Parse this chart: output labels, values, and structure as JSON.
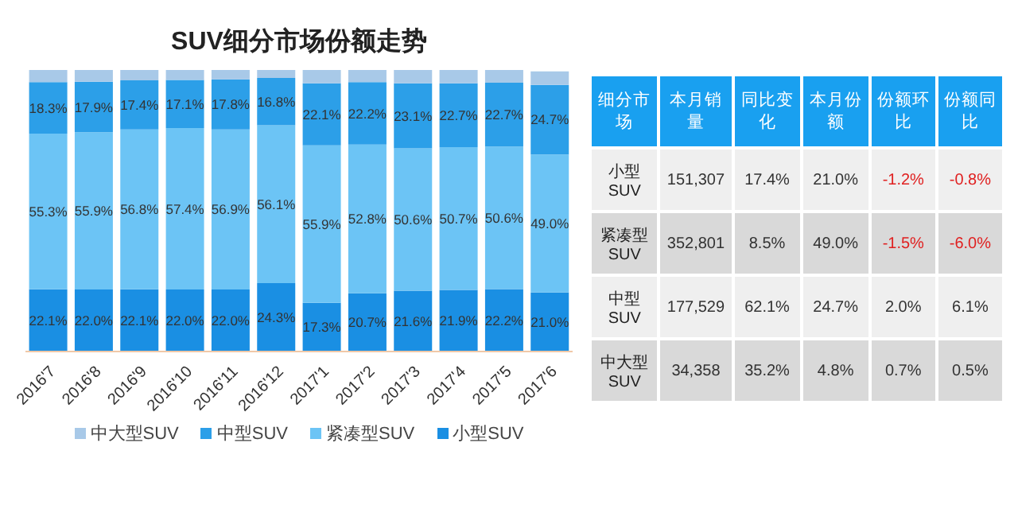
{
  "chart_data": [
    {
      "type": "bar",
      "title": "SUV细分市场份额走势",
      "stacked": true,
      "categories": [
        "2016'7",
        "2016'8",
        "2016'9",
        "2016'10",
        "2016'11",
        "2016'12",
        "2017'1",
        "2017'2",
        "2017'3",
        "2017'4",
        "2017'5",
        "2017'6"
      ],
      "series": [
        {
          "name": "小型SUV",
          "color": "#1a8fe3",
          "values": [
            22.1,
            22.0,
            22.1,
            22.0,
            22.0,
            24.3,
            17.3,
            20.7,
            21.6,
            21.9,
            22.2,
            21.0
          ],
          "value_labels": [
            "22.1%",
            "22.0%",
            "22.1%",
            "22.0%",
            "22.0%",
            "24.3%",
            "17.3%",
            "20.7%",
            "21.6%",
            "21.9%",
            "22.2%",
            "21.0%"
          ]
        },
        {
          "name": "紧凑型SUV",
          "color": "#6cc4f5",
          "values": [
            55.3,
            55.9,
            56.8,
            57.4,
            56.9,
            56.1,
            55.9,
            52.8,
            50.6,
            50.7,
            50.6,
            49.0
          ],
          "value_labels": [
            "55.3%",
            "55.9%",
            "56.8%",
            "57.4%",
            "56.9%",
            "56.1%",
            "55.9%",
            "52.8%",
            "50.6%",
            "50.7%",
            "50.6%",
            "49.0%"
          ]
        },
        {
          "name": "中型SUV",
          "color": "#2c9fe8",
          "values": [
            18.3,
            17.9,
            17.4,
            17.1,
            17.8,
            16.8,
            22.1,
            22.2,
            23.1,
            22.7,
            22.7,
            24.7
          ],
          "value_labels": [
            "18.3%",
            "17.9%",
            "17.4%",
            "17.1%",
            "17.8%",
            "16.8%",
            "22.1%",
            "22.2%",
            "23.1%",
            "22.7%",
            "22.7%",
            "24.7%"
          ]
        },
        {
          "name": "中大型SUV",
          "color": "#a8c9e8",
          "values": [
            4.3,
            4.2,
            3.7,
            3.5,
            3.3,
            2.8,
            4.7,
            4.3,
            4.7,
            4.7,
            4.5,
            4.8
          ]
        }
      ],
      "ylim": [
        0,
        100
      ],
      "tick_labels": "x",
      "legend": "bottom"
    },
    {
      "type": "other",
      "categories": [
        "细分市场",
        "本月销量",
        "同比变化",
        "本月份额",
        "份额环比",
        "份额同比"
      ],
      "y_categories": [
        "小型SUV",
        "紧凑型SUV",
        "中型SUV",
        "中大型SUV"
      ],
      "cell_labels": [
        [
          "151,307",
          "17.4%",
          "21.0%",
          "-1.2%",
          "-0.8%"
        ],
        [
          "352,801",
          "8.5%",
          "49.0%",
          "-1.5%",
          "-6.0%"
        ],
        [
          "177,529",
          "62.1%",
          "24.7%",
          "2.0%",
          "6.1%"
        ],
        [
          "34,358",
          "35.2%",
          "4.8%",
          "0.7%",
          "0.5%"
        ]
      ]
    }
  ]
}
